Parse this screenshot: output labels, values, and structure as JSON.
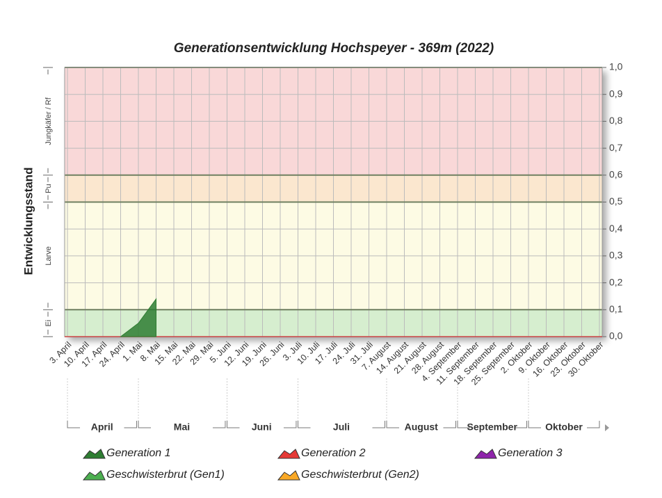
{
  "chart_data": {
    "type": "area",
    "title": "Generationsentwicklung Hochspeyer - 369m (2022)",
    "y_label": "Entwicklungsstand",
    "categories": [
      "3. April",
      "10. April",
      "17. April",
      "24. April",
      "1. Mai",
      "8. Mai",
      "15. Mai",
      "22. Mai",
      "29. Mai",
      "5. Juni",
      "12. Juni",
      "19. Juni",
      "26. Juni",
      "3. Juli",
      "10. Juli",
      "17. Juli",
      "24. Juli",
      "31. Juli",
      "7. August",
      "14. August",
      "21. August",
      "28. August",
      "4. September",
      "11. September",
      "18. September",
      "25. September",
      "2. Oktober",
      "9. Oktober",
      "16. Oktober",
      "23. Oktober",
      "30. Oktober"
    ],
    "months": [
      "April",
      "Mai",
      "Juni",
      "Juli",
      "August",
      "September",
      "Oktober"
    ],
    "series": [
      {
        "name": "Generation 1",
        "color": "#2e7d32",
        "values": [
          null,
          null,
          null,
          0,
          0.05,
          0.14,
          null,
          null,
          null,
          null,
          null,
          null,
          null,
          null,
          null,
          null,
          null,
          null,
          null,
          null,
          null,
          null,
          null,
          null,
          null,
          null,
          null,
          null,
          null,
          null,
          null
        ]
      },
      {
        "name": "Generation 2",
        "color": "#e53935",
        "values": [
          null,
          null,
          null,
          null,
          null,
          null,
          null,
          null,
          null,
          null,
          null,
          null,
          null,
          null,
          null,
          null,
          null,
          null,
          null,
          null,
          null,
          null,
          null,
          null,
          null,
          null,
          null,
          null,
          null,
          null,
          null
        ]
      },
      {
        "name": "Generation 3",
        "color": "#8e24aa",
        "values": [
          null,
          null,
          null,
          null,
          null,
          null,
          null,
          null,
          null,
          null,
          null,
          null,
          null,
          null,
          null,
          null,
          null,
          null,
          null,
          null,
          null,
          null,
          null,
          null,
          null,
          null,
          null,
          null,
          null,
          null,
          null
        ]
      },
      {
        "name": "Geschwisterbrut (Gen1)",
        "color": "#4caf50",
        "values": [
          null,
          null,
          null,
          null,
          null,
          null,
          null,
          null,
          null,
          null,
          null,
          null,
          null,
          null,
          null,
          null,
          null,
          null,
          null,
          null,
          null,
          null,
          null,
          null,
          null,
          null,
          null,
          null,
          null,
          null,
          null
        ]
      },
      {
        "name": "Geschwisterbrut (Gen2)",
        "color": "#f9a825",
        "values": [
          null,
          null,
          null,
          null,
          null,
          null,
          null,
          null,
          null,
          null,
          null,
          null,
          null,
          null,
          null,
          null,
          null,
          null,
          null,
          null,
          null,
          null,
          null,
          null,
          null,
          null,
          null,
          null,
          null,
          null,
          null
        ]
      }
    ],
    "bands": [
      {
        "label": "Ei",
        "from": 0,
        "to": 0.1,
        "color": "#d6eecf"
      },
      {
        "label": "Larve",
        "from": 0.1,
        "to": 0.5,
        "color": "#fdfbe4"
      },
      {
        "label": "Pu",
        "from": 0.5,
        "to": 0.6,
        "color": "#fbe7cf"
      },
      {
        "label": "Jungkäfer / Rf",
        "from": 0.6,
        "to": 1.0,
        "color": "#f9d8d8"
      }
    ],
    "ylim": [
      0,
      1.0
    ],
    "yticks": [
      {
        "value": 0,
        "label": "0,0"
      },
      {
        "value": 0.1,
        "label": "0,1"
      },
      {
        "value": 0.2,
        "label": "0,2"
      },
      {
        "value": 0.3,
        "label": "0,3"
      },
      {
        "value": 0.4,
        "label": "0,4"
      },
      {
        "value": 0.5,
        "label": "0,5"
      },
      {
        "value": 0.6,
        "label": "0,6"
      },
      {
        "value": 0.7,
        "label": "0,7"
      },
      {
        "value": 0.8,
        "label": "0,8"
      },
      {
        "value": 0.9,
        "label": "0,9"
      },
      {
        "value": 1.0,
        "label": "1,0"
      }
    ],
    "grid": true
  }
}
